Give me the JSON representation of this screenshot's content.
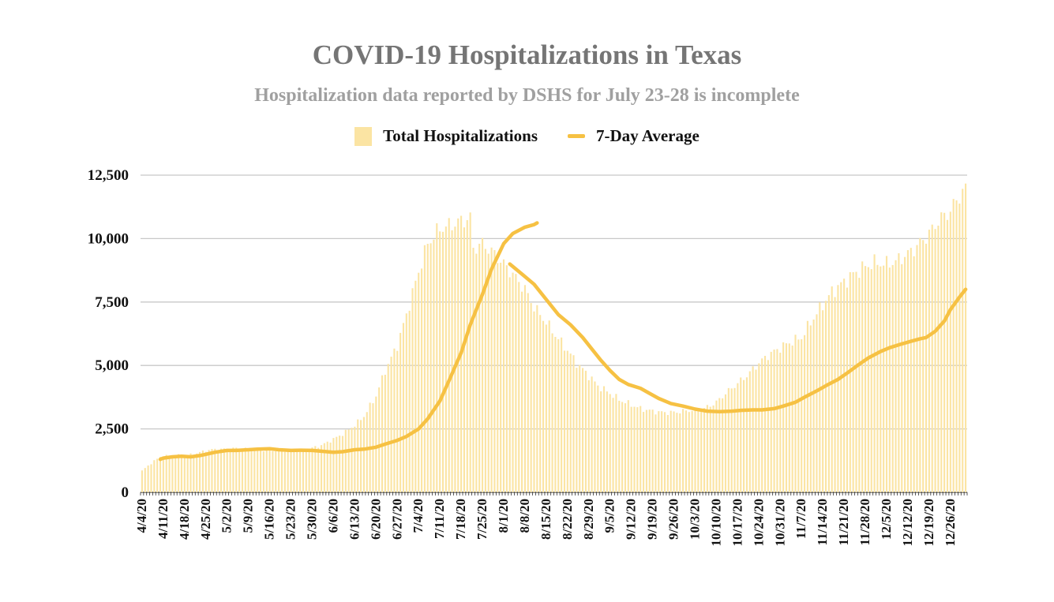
{
  "chart_data": {
    "type": "bar",
    "title": "COVID-19 Hospitalizations in Texas",
    "subtitle": "Hospitalization data reported by DSHS for July 23-28 is incomplete",
    "legend": [
      "Total Hospitalizations",
      "7-Day Average"
    ],
    "legend_position": "top-center",
    "ylim": [
      0,
      12500
    ],
    "yticks": [
      0,
      2500,
      5000,
      7500,
      10000,
      12500
    ],
    "ytick_labels": [
      "0",
      "2,500",
      "5,000",
      "7,500",
      "10,000",
      "12,500"
    ],
    "grid": true,
    "start_date": "2020-04-04",
    "num_days": 272,
    "xtick_labels": [
      "4/4/20",
      "4/11/20",
      "4/18/20",
      "4/25/20",
      "5/2/20",
      "5/9/20",
      "5/16/20",
      "5/23/20",
      "5/30/20",
      "6/6/20",
      "6/13/20",
      "6/20/20",
      "6/27/20",
      "7/4/20",
      "7/11/20",
      "7/18/20",
      "7/25/20",
      "8/1/20",
      "8/8/20",
      "8/15/20",
      "8/22/20",
      "8/29/20",
      "9/5/20",
      "9/12/20",
      "9/19/20",
      "9/26/20",
      "10/3/20",
      "10/10/20",
      "10/17/20",
      "10/24/20",
      "10/31/20",
      "11/7/20",
      "11/14/20",
      "11/21/20",
      "11/28/20",
      "12/5/20",
      "12/12/20",
      "12/19/20",
      "12/26/20"
    ],
    "series": [
      {
        "name": "Total Hospitalizations",
        "type": "bar",
        "color": "#fbe4a3",
        "anchors": [
          [
            0,
            850
          ],
          [
            3,
            1150
          ],
          [
            6,
            1400
          ],
          [
            10,
            1450
          ],
          [
            14,
            1450
          ],
          [
            17,
            1500
          ],
          [
            21,
            1650
          ],
          [
            24,
            1700
          ],
          [
            28,
            1700
          ],
          [
            32,
            1750
          ],
          [
            35,
            1700
          ],
          [
            38,
            1650
          ],
          [
            42,
            1650
          ],
          [
            45,
            1650
          ],
          [
            49,
            1600
          ],
          [
            52,
            1650
          ],
          [
            56,
            1750
          ],
          [
            59,
            1850
          ],
          [
            63,
            2100
          ],
          [
            66,
            2300
          ],
          [
            70,
            2650
          ],
          [
            73,
            3000
          ],
          [
            77,
            3800
          ],
          [
            80,
            4800
          ],
          [
            84,
            5800
          ],
          [
            87,
            7000
          ],
          [
            91,
            8700
          ],
          [
            94,
            9800
          ],
          [
            98,
            10400
          ],
          [
            101,
            10500
          ],
          [
            105,
            10700
          ],
          [
            108,
            10800
          ],
          [
            109,
            9600
          ],
          [
            112,
            9800
          ],
          [
            115,
            9500
          ],
          [
            119,
            9000
          ],
          [
            122,
            8600
          ],
          [
            126,
            8000
          ],
          [
            129,
            7300
          ],
          [
            133,
            6700
          ],
          [
            136,
            6200
          ],
          [
            140,
            5600
          ],
          [
            143,
            5100
          ],
          [
            147,
            4600
          ],
          [
            150,
            4200
          ],
          [
            154,
            3900
          ],
          [
            157,
            3650
          ],
          [
            161,
            3450
          ],
          [
            164,
            3300
          ],
          [
            168,
            3200
          ],
          [
            171,
            3150
          ],
          [
            175,
            3150
          ],
          [
            178,
            3200
          ],
          [
            182,
            3250
          ],
          [
            185,
            3300
          ],
          [
            189,
            3550
          ],
          [
            192,
            3900
          ],
          [
            196,
            4300
          ],
          [
            199,
            4600
          ],
          [
            203,
            5100
          ],
          [
            206,
            5400
          ],
          [
            210,
            5700
          ],
          [
            213,
            5900
          ],
          [
            217,
            6100
          ],
          [
            220,
            6700
          ],
          [
            224,
            7400
          ],
          [
            227,
            7900
          ],
          [
            231,
            8300
          ],
          [
            234,
            8600
          ],
          [
            238,
            8900
          ],
          [
            241,
            9050
          ],
          [
            245,
            9000
          ],
          [
            248,
            9100
          ],
          [
            252,
            9400
          ],
          [
            255,
            9700
          ],
          [
            259,
            10200
          ],
          [
            262,
            10700
          ],
          [
            266,
            11100
          ],
          [
            269,
            11700
          ],
          [
            271,
            11950
          ]
        ]
      },
      {
        "name": "7-Day Average",
        "type": "line",
        "color": "#f6c143",
        "segments": [
          [
            [
              6,
              1300
            ],
            [
              7,
              1350
            ],
            [
              10,
              1400
            ],
            [
              13,
              1420
            ],
            [
              16,
              1400
            ],
            [
              19,
              1450
            ],
            [
              21,
              1500
            ],
            [
              24,
              1580
            ],
            [
              28,
              1650
            ],
            [
              31,
              1650
            ],
            [
              35,
              1680
            ],
            [
              38,
              1700
            ],
            [
              42,
              1720
            ],
            [
              45,
              1680
            ],
            [
              49,
              1650
            ],
            [
              52,
              1660
            ],
            [
              56,
              1650
            ],
            [
              59,
              1620
            ],
            [
              63,
              1580
            ],
            [
              66,
              1600
            ],
            [
              70,
              1680
            ],
            [
              73,
              1700
            ],
            [
              77,
              1780
            ],
            [
              80,
              1900
            ],
            [
              84,
              2050
            ],
            [
              87,
              2200
            ],
            [
              91,
              2500
            ],
            [
              94,
              2900
            ],
            [
              98,
              3600
            ],
            [
              101,
              4400
            ],
            [
              105,
              5500
            ],
            [
              108,
              6600
            ],
            [
              112,
              7800
            ],
            [
              115,
              8800
            ],
            [
              119,
              9800
            ],
            [
              122,
              10200
            ],
            [
              126,
              10450
            ],
            [
              129,
              10550
            ],
            [
              130,
              10620
            ]
          ],
          [
            [
              121,
              9000
            ],
            [
              125,
              8600
            ],
            [
              129,
              8200
            ],
            [
              133,
              7600
            ],
            [
              137,
              7000
            ],
            [
              141,
              6600
            ],
            [
              145,
              6100
            ],
            [
              148,
              5650
            ],
            [
              151,
              5200
            ],
            [
              154,
              4800
            ],
            [
              157,
              4450
            ],
            [
              160,
              4250
            ],
            [
              164,
              4100
            ],
            [
              167,
              3900
            ],
            [
              170,
              3700
            ],
            [
              174,
              3500
            ],
            [
              178,
              3400
            ],
            [
              182,
              3280
            ],
            [
              186,
              3200
            ],
            [
              190,
              3180
            ],
            [
              194,
              3200
            ],
            [
              197,
              3230
            ],
            [
              201,
              3250
            ],
            [
              204,
              3250
            ],
            [
              208,
              3300
            ],
            [
              211,
              3400
            ],
            [
              215,
              3550
            ],
            [
              218,
              3750
            ],
            [
              222,
              4000
            ],
            [
              225,
              4200
            ],
            [
              229,
              4450
            ],
            [
              232,
              4700
            ],
            [
              236,
              5050
            ],
            [
              239,
              5300
            ],
            [
              243,
              5550
            ],
            [
              246,
              5700
            ],
            [
              250,
              5850
            ],
            [
              253,
              5950
            ],
            [
              256,
              6050
            ],
            [
              258,
              6100
            ],
            [
              261,
              6350
            ],
            [
              264,
              6750
            ],
            [
              266,
              7200
            ],
            [
              269,
              7700
            ],
            [
              271,
              8000
            ]
          ]
        ]
      }
    ]
  }
}
